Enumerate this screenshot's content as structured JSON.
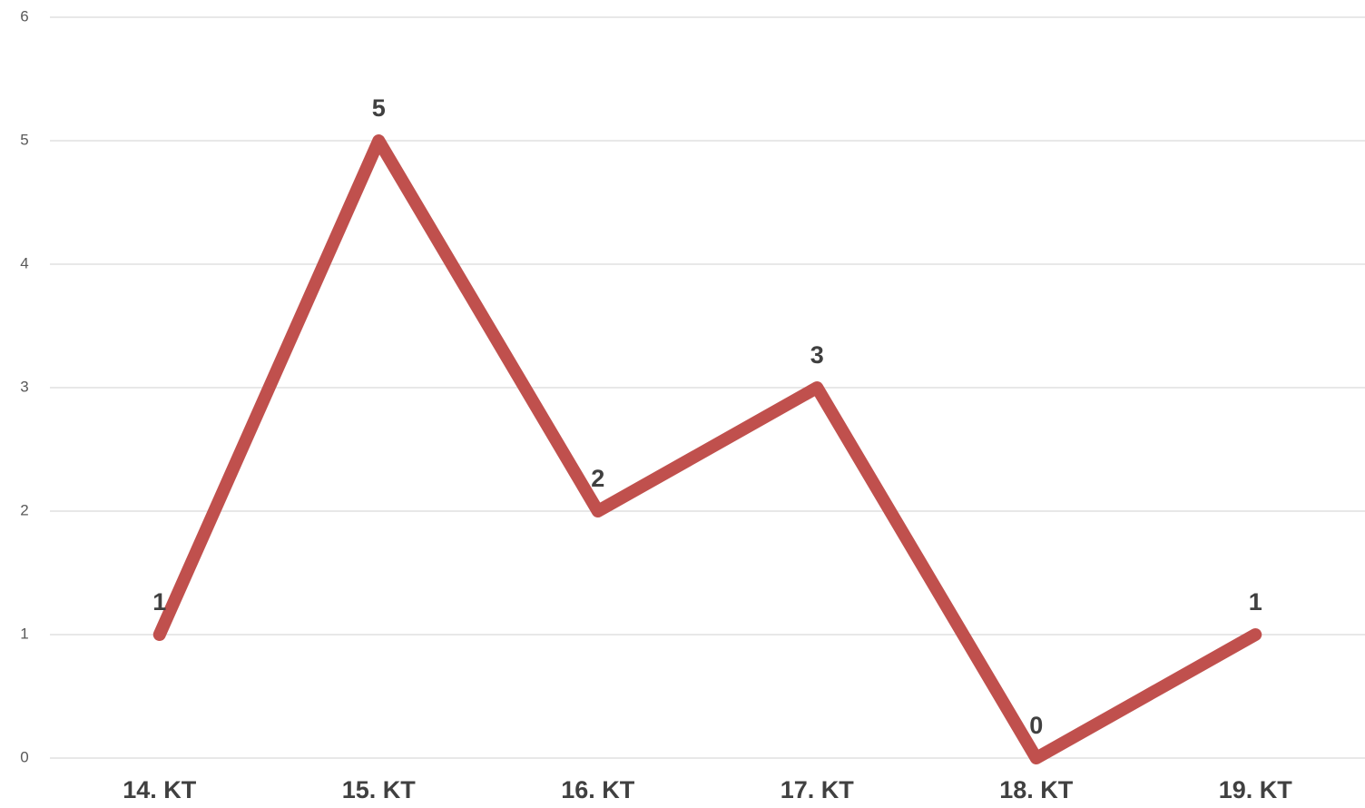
{
  "chart_data": {
    "type": "line",
    "categories": [
      "14. KT",
      "15. KT",
      "16. KT",
      "17. KT",
      "18. KT",
      "19. KT"
    ],
    "series": [
      {
        "color": "#c0504d",
        "values": [
          1,
          5,
          2,
          3,
          0,
          1
        ]
      }
    ],
    "ylim": [
      0,
      6
    ],
    "yticks": [
      0,
      1,
      2,
      3,
      4,
      5,
      6
    ],
    "grid": true
  }
}
